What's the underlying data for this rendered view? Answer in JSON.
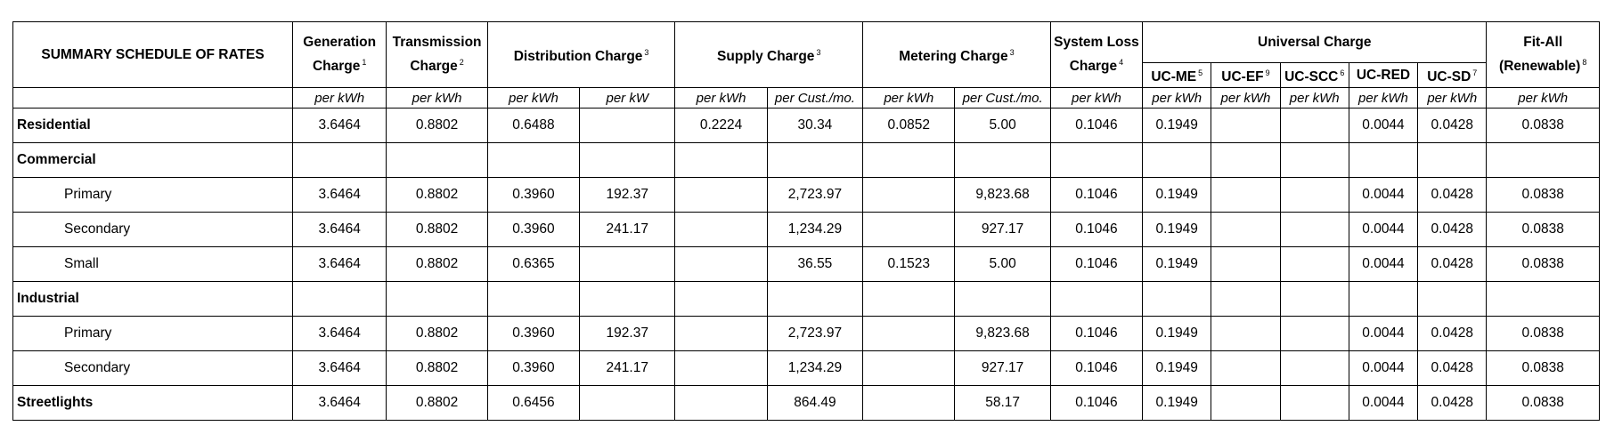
{
  "header": {
    "title": "SUMMARY SCHEDULE OF RATES",
    "generation": {
      "line1": "Generation",
      "line2": "Charge",
      "note": "1"
    },
    "transmission": {
      "line1": "Transmission",
      "line2": "Charge",
      "note": "2"
    },
    "distribution": {
      "label": "Distribution Charge",
      "note": "3"
    },
    "supply": {
      "label": "Supply Charge",
      "note": "3"
    },
    "metering": {
      "label": "Metering Charge",
      "note": "3"
    },
    "system_loss": {
      "line1": "System Loss",
      "line2": "Charge",
      "note": "4"
    },
    "universal": {
      "label": "Universal Charge"
    },
    "uc_me": {
      "label": "UC-ME",
      "note": "5"
    },
    "uc_ef": {
      "label": "UC-EF",
      "note": "9"
    },
    "uc_scc": {
      "label": "UC-SCC",
      "note": "6"
    },
    "uc_red": {
      "label": "UC-RED"
    },
    "uc_sd": {
      "label": "UC-SD",
      "note": "7"
    },
    "fit_all": {
      "line1": "Fit-All",
      "line2": "(Renewable)",
      "note": "8"
    }
  },
  "units": [
    "per kWh",
    "per kWh",
    "per kWh",
    "per kW",
    "per kWh",
    "per Cust./mo.",
    "per kWh",
    "per Cust./mo.",
    "per kWh",
    "per kWh",
    "per kWh",
    "per kWh",
    "per kWh",
    "per kWh",
    "per kWh"
  ],
  "rows": [
    {
      "label": "Residential",
      "style": "bold",
      "values": [
        "3.6464",
        "0.8802",
        "0.6488",
        "",
        "0.2224",
        "30.34",
        "0.0852",
        "5.00",
        "0.1046",
        "0.1949",
        "",
        "",
        "0.0044",
        "0.0428",
        "0.0838"
      ]
    },
    {
      "label": "Commercial",
      "style": "bold",
      "values": [
        "",
        "",
        "",
        "",
        "",
        "",
        "",
        "",
        "",
        "",
        "",
        "",
        "",
        "",
        ""
      ]
    },
    {
      "label": "Primary",
      "style": "indent",
      "values": [
        "3.6464",
        "0.8802",
        "0.3960",
        "192.37",
        "",
        "2,723.97",
        "",
        "9,823.68",
        "0.1046",
        "0.1949",
        "",
        "",
        "0.0044",
        "0.0428",
        "0.0838"
      ]
    },
    {
      "label": "Secondary",
      "style": "indent",
      "values": [
        "3.6464",
        "0.8802",
        "0.3960",
        "241.17",
        "",
        "1,234.29",
        "",
        "927.17",
        "0.1046",
        "0.1949",
        "",
        "",
        "0.0044",
        "0.0428",
        "0.0838"
      ]
    },
    {
      "label": "Small",
      "style": "indent",
      "values": [
        "3.6464",
        "0.8802",
        "0.6365",
        "",
        "",
        "36.55",
        "0.1523",
        "5.00",
        "0.1046",
        "0.1949",
        "",
        "",
        "0.0044",
        "0.0428",
        "0.0838"
      ]
    },
    {
      "label": "Industrial",
      "style": "bold",
      "values": [
        "",
        "",
        "",
        "",
        "",
        "",
        "",
        "",
        "",
        "",
        "",
        "",
        "",
        "",
        ""
      ]
    },
    {
      "label": "Primary",
      "style": "indent",
      "values": [
        "3.6464",
        "0.8802",
        "0.3960",
        "192.37",
        "",
        "2,723.97",
        "",
        "9,823.68",
        "0.1046",
        "0.1949",
        "",
        "",
        "0.0044",
        "0.0428",
        "0.0838"
      ]
    },
    {
      "label": "Secondary",
      "style": "indent",
      "values": [
        "3.6464",
        "0.8802",
        "0.3960",
        "241.17",
        "",
        "1,234.29",
        "",
        "927.17",
        "0.1046",
        "0.1949",
        "",
        "",
        "0.0044",
        "0.0428",
        "0.0838"
      ]
    },
    {
      "label": "Streetlights",
      "style": "bold",
      "values": [
        "3.6464",
        "0.8802",
        "0.6456",
        "",
        "",
        "864.49",
        "",
        "58.17",
        "0.1046",
        "0.1949",
        "",
        "",
        "0.0044",
        "0.0428",
        "0.0838"
      ]
    }
  ]
}
